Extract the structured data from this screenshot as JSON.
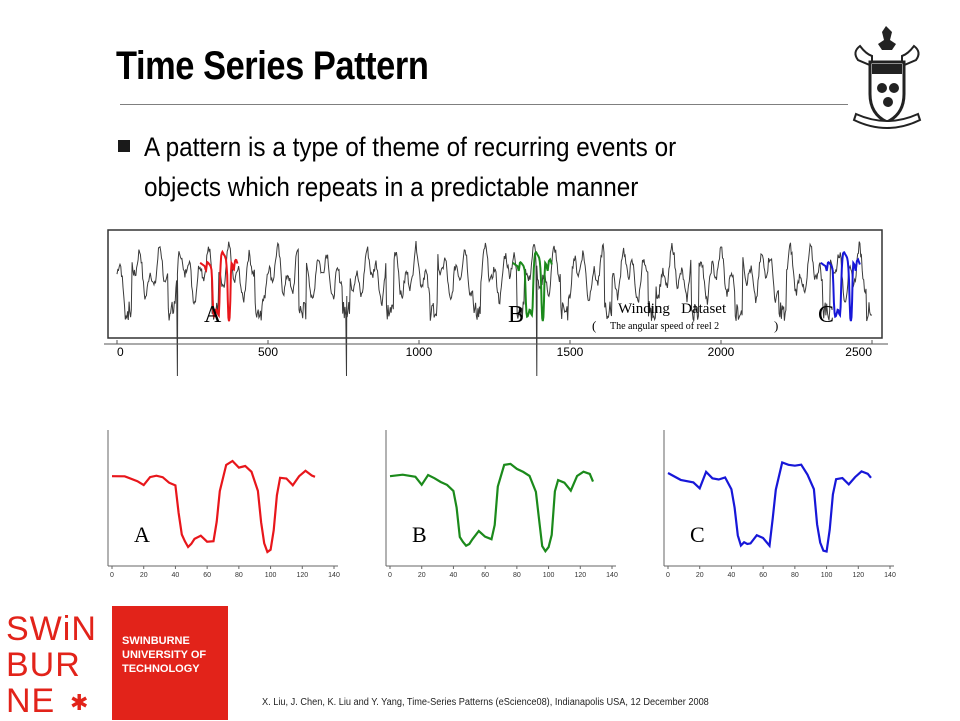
{
  "slide": {
    "title": "Time Series Pattern",
    "bullet_line1": "A pattern is a type of theme of recurring events or",
    "bullet_line2": "objects which repeats in a predictable manner",
    "footer": "X. Liu, J. Chen, K. Liu and Y. Yang, Time-Series Patterns (eScience08), Indianapolis USA, 12 December 2008"
  },
  "logo": {
    "line1": "SWiN",
    "line2": "BUR",
    "line3": "NE",
    "university": [
      "SWINBURNE",
      "UNIVERSITY OF",
      "TECHNOLOGY"
    ],
    "red": "#e2231a"
  },
  "chart_data": [
    {
      "type": "line",
      "annotation_title": "Winding   Dataset",
      "annotation_sub": "The angular speed of reel 2",
      "xticks": [
        "0",
        "500",
        "1000",
        "1500",
        "2000",
        "2500"
      ],
      "xlim": [
        0,
        2500
      ],
      "pattern_labels": [
        "A",
        "B",
        "C"
      ],
      "highlights": [
        {
          "label": "A",
          "x_start": 275,
          "x_end": 400,
          "color": "#e8161b"
        },
        {
          "label": "B",
          "x_start": 1310,
          "x_end": 1440,
          "color": "#1b8a1b"
        },
        {
          "label": "C",
          "x_start": 2330,
          "x_end": 2460,
          "color": "#1717d8"
        }
      ],
      "base_color": "#3a3a3a"
    },
    {
      "type": "line",
      "panels": [
        {
          "label": "A",
          "color": "#e8161b"
        },
        {
          "label": "B",
          "color": "#1b8a1b"
        },
        {
          "label": "C",
          "color": "#1717d8"
        }
      ],
      "xticks": [
        "0",
        "20",
        "40",
        "60",
        "80",
        "100",
        "120",
        "140"
      ],
      "xlim": [
        0,
        140
      ],
      "x": [
        0,
        8,
        16,
        20,
        24,
        28,
        32,
        36,
        40,
        42,
        44,
        46,
        48,
        50,
        52,
        56,
        60,
        64,
        66,
        68,
        72,
        76,
        80,
        84,
        88,
        92,
        94,
        96,
        98,
        100,
        102,
        104,
        106,
        110,
        114,
        118,
        122,
        126,
        128
      ],
      "y": [
        0.72,
        0.7,
        0.68,
        0.62,
        0.73,
        0.72,
        0.7,
        0.68,
        0.62,
        0.4,
        0.18,
        0.1,
        0.08,
        0.1,
        0.12,
        0.18,
        0.12,
        0.1,
        0.3,
        0.6,
        0.82,
        0.85,
        0.82,
        0.8,
        0.76,
        0.6,
        0.3,
        0.08,
        0.03,
        0.05,
        0.2,
        0.55,
        0.72,
        0.7,
        0.62,
        0.74,
        0.76,
        0.72,
        0.7
      ]
    }
  ]
}
